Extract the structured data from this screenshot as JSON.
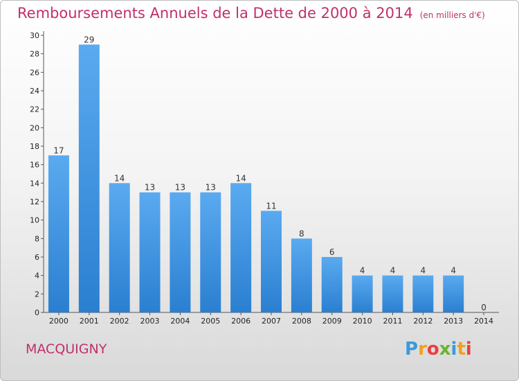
{
  "chart_data": {
    "type": "bar",
    "title": "Remboursements Annuels de la Dette de 2000 à 2014",
    "subtitle": "(en milliers d'€)",
    "categories": [
      "2000",
      "2001",
      "2002",
      "2003",
      "2004",
      "2005",
      "2006",
      "2007",
      "2008",
      "2009",
      "2010",
      "2011",
      "2012",
      "2013",
      "2014"
    ],
    "values": [
      17,
      29,
      14,
      13,
      13,
      13,
      14,
      11,
      8,
      6,
      4,
      4,
      4,
      4,
      0
    ],
    "ylim": [
      0,
      30
    ],
    "yticks": [
      0,
      2,
      4,
      6,
      8,
      10,
      12,
      14,
      16,
      18,
      20,
      22,
      24,
      26,
      28,
      30
    ],
    "grid": false,
    "colors": {
      "bar_top": "#5aaaf0",
      "bar_bottom": "#2a7fd0",
      "title": "#c0306a"
    }
  },
  "location": "MACQUIGNY",
  "logo": {
    "letters": [
      "P",
      "r",
      "o",
      "x",
      "i",
      "t",
      "i"
    ],
    "colors": [
      "#3a9ad9",
      "#f0a020",
      "#e84040",
      "#6ab42e",
      "#3a9ad9",
      "#f0a020",
      "#e84040"
    ]
  }
}
